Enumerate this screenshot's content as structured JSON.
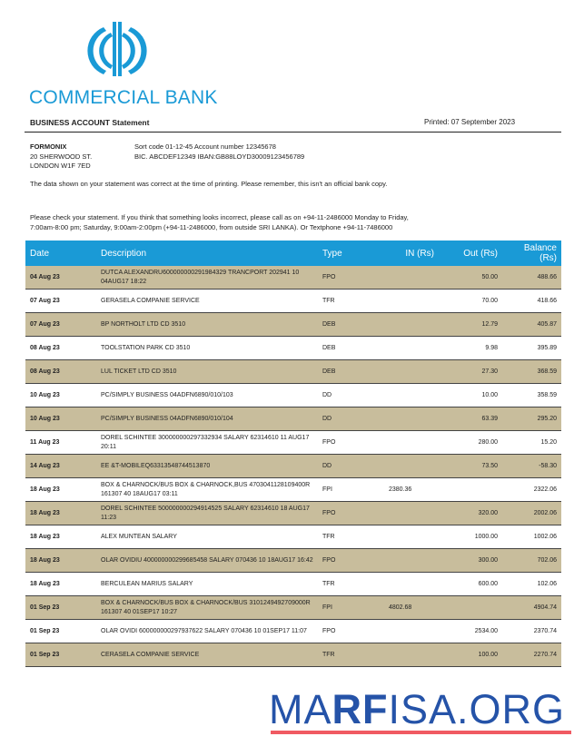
{
  "bank": {
    "name": "COMMERCIAL BANK",
    "brand_color": "#1a9ad6"
  },
  "statement": {
    "title": "BUSINESS ACCOUNT Statement",
    "printed": "Printed: 07 September 2023"
  },
  "customer": {
    "name": "FORMONIX",
    "address_line1": "20 SHERWOOD ST.",
    "address_line2": "LONDON W1F 7ED"
  },
  "account": {
    "line1": "Sort code 01-12-45  Account number 12345678",
    "line2": "BIC. ABCDEF12349   IBAN:GB88LOYD30009123456789"
  },
  "notes": {
    "accuracy": "The data shown on your statement was correct at the time of printing. Please remember, this isn't an official bank copy.",
    "contact": "Please check your statement. If you think that something looks incorrect, please call as on +94-11-2486000 Monday to Friday, 7:00am-8:00 pm; Saturday, 9:00am-2:00pm (+94-11-2486000, from outside SRI LANKA). Or Textphone   +94-11-7486000"
  },
  "table": {
    "headers": [
      "Date",
      "Description",
      "Type",
      "IN (Rs)",
      "Out (Rs)",
      "Balance (Rs)"
    ],
    "rows": [
      {
        "date": "04 Aug 23",
        "desc": "DUTCA ALEXANDRU600000000291984329 TRANCPORT 202941 10 04AUG17 18:22",
        "type": "FPO",
        "in": "",
        "out": "50.00",
        "bal": "488.66"
      },
      {
        "date": "07 Aug 23",
        "desc": "GERASELA COMPANIE SERVICE",
        "type": "TFR",
        "in": "",
        "out": "70.00",
        "bal": "418.66"
      },
      {
        "date": "07 Aug 23",
        "desc": "BP NORTHOLT LTD CD 3510",
        "type": "DEB",
        "in": "",
        "out": "12.79",
        "bal": "405.87"
      },
      {
        "date": "08 Aug 23",
        "desc": "TOOLSTATION PARK CD 3510",
        "type": "DEB",
        "in": "",
        "out": "9.98",
        "bal": "395.89"
      },
      {
        "date": "08 Aug 23",
        "desc": "LUL TICKET LTD CD 3510",
        "type": "DEB",
        "in": "",
        "out": "27.30",
        "bal": "368.59"
      },
      {
        "date": "10 Aug 23",
        "desc": "PC/SIMPLY BUSINESS 04ADFN6890/010/103",
        "type": "DD",
        "in": "",
        "out": "10.00",
        "bal": "358.59"
      },
      {
        "date": "10 Aug 23",
        "desc": "PC/SIMPLY BUSINESS 04ADFN6890/010/104",
        "type": "DD",
        "in": "",
        "out": "63.39",
        "bal": "295.20"
      },
      {
        "date": "11 Aug 23",
        "desc": "DOREL SCHINTEE 300000000297332934 SALARY 62314610 11 AUG17 20:11",
        "type": "FPO",
        "in": "",
        "out": "280.00",
        "bal": "15.20"
      },
      {
        "date": "14 Aug 23",
        "desc": "EE &T-MOBILEQ63313548744513870",
        "type": "DD",
        "in": "",
        "out": "73.50",
        "bal": "-58.30"
      },
      {
        "date": "18 Aug 23",
        "desc": "BOX & CHARNOCK/BUS BOX & CHARNOCK,BUS 4703041128109400R 161307 40 18AUG17 03:11",
        "type": "FPI",
        "in": "2380.36",
        "out": "",
        "bal": "2322.06"
      },
      {
        "date": "18 Aug 23",
        "desc": "DOREL SCHINTEE 500000000294914525 SALARY 62314610 18 AUG17 11:23",
        "type": "FPO",
        "in": "",
        "out": "320.00",
        "bal": "2002.06"
      },
      {
        "date": "18 Aug 23",
        "desc": "ALEX MUNTEAN SALARY",
        "type": "TFR",
        "in": "",
        "out": "1000.00",
        "bal": "1002.06"
      },
      {
        "date": "18 Aug 23",
        "desc": "OLAR OVIDIU 400000000299685458 SALARY 070436 10 18AUG17 16:42",
        "type": "FPO",
        "in": "",
        "out": "300.00",
        "bal": "702.06"
      },
      {
        "date": "18 Aug 23",
        "desc": "BERCULEAN MARIUS SALARY",
        "type": "TFR",
        "in": "",
        "out": "600.00",
        "bal": "102.06"
      },
      {
        "date": "01 Sep 23",
        "desc": "BOX & CHARNOCK/BUS BOX & CHARNOCK/BUS 3101249492709000R 161307 40 01SEP17 10:27",
        "type": "FPI",
        "in": "4802.68",
        "out": "",
        "bal": "4904.74"
      },
      {
        "date": "01 Sep 23",
        "desc": "OLAR OVIDI 600000000297937622 SALARY 070436 10 01SEP17 11:07",
        "type": "FPO",
        "in": "",
        "out": "2534.00",
        "bal": "2370.74"
      },
      {
        "date": "01 Sep 23",
        "desc": "CERASELA COMPANIE SERVICE",
        "type": "TFR",
        "in": "",
        "out": "100.00",
        "bal": "2270.74"
      }
    ]
  },
  "watermark": {
    "part1": "MA",
    "part2": "RF",
    "part3": "ISA.ORG"
  }
}
